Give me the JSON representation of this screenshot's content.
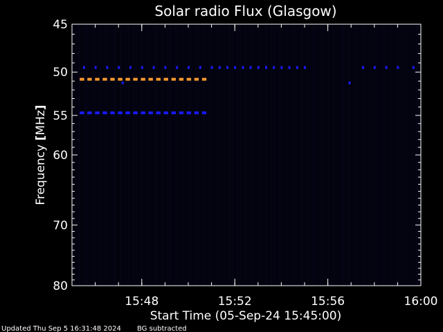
{
  "chart_data": {
    "type": "heatmap",
    "title": "Solar radio Flux (Glasgow)",
    "xlabel": "Start Time (05-Sep-24 15:45:00)",
    "ylabel_text": "Frequency ",
    "ylabel_unit": "MHz",
    "xlim": [
      "15:45",
      "16:00"
    ],
    "ylim": [
      80,
      45
    ],
    "x_ticks": [
      "15:48",
      "15:52",
      "15:56",
      "16:00"
    ],
    "y_ticks": [
      45,
      50,
      55,
      60,
      70,
      80
    ],
    "y_scale": "log",
    "grid": false,
    "series": [
      {
        "color": "#ff9a2e",
        "frequency": 50.8,
        "start": "15:45:20",
        "end": "15:50:55",
        "dash_count": 17
      },
      {
        "color": "#1a1aff",
        "frequency": 54.7,
        "start": "15:45:20",
        "end": "15:50:55",
        "dash_count": 17
      },
      {
        "color": "#1a1aff",
        "frequency": 49.5,
        "start": "15:45:15",
        "end": "15:59:50",
        "marks": [
          "15:45:30",
          "15:46:00",
          "15:46:30",
          "15:47:00",
          "15:47:30",
          "15:48:00",
          "15:48:30",
          "15:49:00",
          "15:49:30",
          "15:50:00",
          "15:50:30",
          "15:51:00",
          "15:51:20",
          "15:51:40",
          "15:52:00",
          "15:52:20",
          "15:52:40",
          "15:53:00",
          "15:53:20",
          "15:53:40",
          "15:54:00",
          "15:54:20",
          "15:54:40",
          "15:55:00",
          "15:57:30",
          "15:58:00",
          "15:58:30",
          "15:59:00",
          "15:59:40"
        ]
      },
      {
        "color": "#1a1aff",
        "frequency": 51.2,
        "marks": [
          "15:47:10",
          "15:56:55"
        ]
      }
    ]
  },
  "footer": {
    "updated": "Updated Thu Sep  5 16:31:48 2024",
    "note": "BG subtracted"
  },
  "colors": {
    "background": "#000000",
    "axes": "#ffffff",
    "plot_background": "#03030f"
  }
}
